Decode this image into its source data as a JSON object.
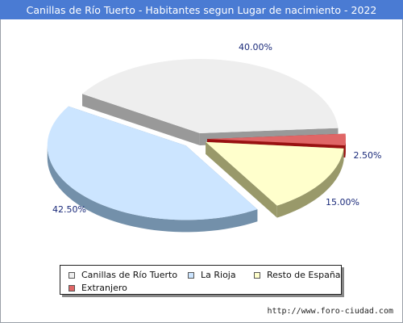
{
  "title": "Canillas de Río Tuerto - Habitantes segun Lugar de nacimiento - 2022",
  "footer": "http://www.foro-ciudad.com",
  "chart_data": {
    "type": "pie",
    "title": "Canillas de Río Tuerto - Habitantes segun Lugar de nacimiento - 2022",
    "slices": [
      {
        "label": "Canillas de Río Tuerto",
        "value": 40.0,
        "display": "40.00%",
        "color": "#eeeeee",
        "side": "#999999"
      },
      {
        "label": "La Rioja",
        "value": 42.5,
        "display": "42.50%",
        "color": "#cce5ff",
        "side": "#7390aa"
      },
      {
        "label": "Resto de España",
        "value": 15.0,
        "display": "15.00%",
        "color": "#ffffcc",
        "side": "#99996a"
      },
      {
        "label": "Extranjero",
        "value": 2.5,
        "display": "2.50%",
        "color": "#e06666",
        "side": "#991111"
      }
    ],
    "legend_position": "bottom"
  }
}
